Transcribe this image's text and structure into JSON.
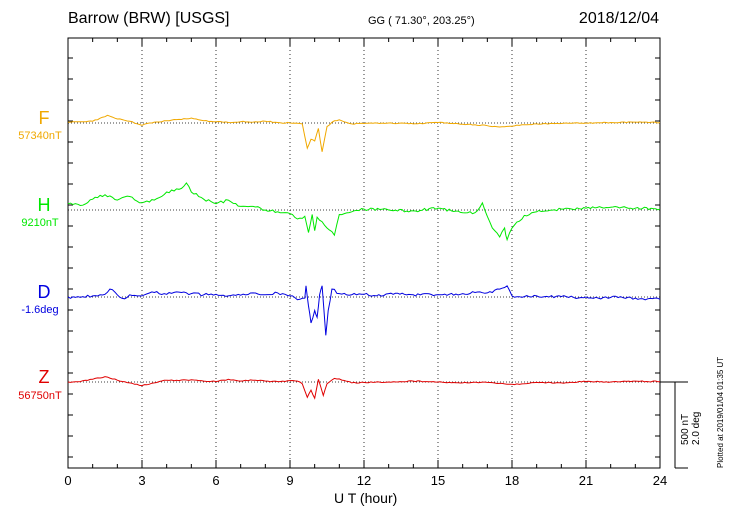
{
  "header": {
    "station": "Barrow (BRW)  [USGS]",
    "coordinates": "GG ( 71.30°, 203.25°)",
    "date": "2018/12/04"
  },
  "scale_bar": {
    "line1": "500 nT",
    "line2": "2.0 deg"
  },
  "plotted_note": "Plotted at 2019/01/04 01:35 UT",
  "colors": {
    "F": "#f0a800",
    "H": "#00e800",
    "D": "#0000e0",
    "Z": "#e00000"
  },
  "chart_data": {
    "type": "line",
    "title": "Barrow (BRW)  [USGS]",
    "xlabel": "U T (hour)",
    "ylabel": "",
    "xlim": [
      0,
      24
    ],
    "x_ticks": [
      "0",
      "3",
      "6",
      "9",
      "12",
      "15",
      "18",
      "21",
      "24"
    ],
    "grid": "vertical dotted at 3-hour intervals; dotted baseline per channel",
    "scale": {
      "nT_per_bar": 500,
      "deg_per_bar": 2.0
    },
    "series": [
      {
        "name": "F",
        "baseline_label": "57340nT",
        "unit": "nT",
        "x": [
          0,
          1,
          1.6,
          2,
          2.5,
          3,
          3.5,
          4,
          4.5,
          5,
          5.5,
          6,
          6.5,
          7,
          7.5,
          8,
          8.5,
          9,
          9.5,
          9.7,
          9.85,
          10,
          10.15,
          10.3,
          10.5,
          10.8,
          11,
          11.5,
          12,
          13,
          14,
          15,
          16,
          16.5,
          17,
          17.5,
          18,
          18.5,
          19,
          20,
          21,
          22,
          23,
          24
        ],
        "values": [
          10,
          20,
          85,
          45,
          20,
          -25,
          10,
          25,
          40,
          55,
          25,
          15,
          5,
          15,
          10,
          20,
          5,
          0,
          -10,
          -280,
          -180,
          -200,
          -60,
          -320,
          -40,
          25,
          35,
          -10,
          -5,
          0,
          -10,
          5,
          -15,
          -20,
          -30,
          -45,
          -35,
          -20,
          -10,
          -5,
          0,
          5,
          10,
          5
        ]
      },
      {
        "name": "H",
        "baseline_label": "9210nT",
        "unit": "nT",
        "x": [
          0,
          0.5,
          1,
          1.5,
          2,
          2.5,
          3,
          3.5,
          4,
          4.5,
          4.8,
          5,
          5.5,
          6,
          6.5,
          7,
          7.5,
          8,
          8.5,
          9,
          9.3,
          9.6,
          9.75,
          9.9,
          10,
          10.1,
          10.3,
          10.5,
          10.8,
          11,
          11.5,
          12,
          13,
          14,
          15,
          16,
          16.5,
          16.8,
          17,
          17.2,
          17.5,
          17.7,
          17.8,
          18,
          18.5,
          19,
          20,
          21,
          22,
          23,
          24
        ],
        "values": [
          70,
          50,
          120,
          170,
          110,
          150,
          80,
          110,
          200,
          230,
          300,
          200,
          120,
          70,
          110,
          40,
          40,
          0,
          -20,
          -40,
          -100,
          -70,
          -250,
          -50,
          -230,
          -80,
          -130,
          -200,
          -280,
          -50,
          -20,
          10,
          0,
          -10,
          20,
          -30,
          -30,
          80,
          -70,
          -200,
          -300,
          -200,
          -330,
          -200,
          -60,
          -20,
          10,
          20,
          30,
          20,
          10
        ]
      },
      {
        "name": "D",
        "baseline_label": "-1.6deg",
        "unit": "deg",
        "x": [
          0,
          0.5,
          1,
          1.5,
          1.7,
          2,
          2.3,
          2.5,
          3,
          3.5,
          4,
          4.5,
          5,
          5.5,
          6,
          6.5,
          7,
          7.5,
          8,
          8.5,
          9,
          9.3,
          9.6,
          9.65,
          9.75,
          9.85,
          10,
          10.1,
          10.2,
          10.3,
          10.45,
          10.55,
          10.7,
          11,
          11.5,
          12,
          12.5,
          13,
          14,
          15,
          16,
          16.5,
          17,
          17.5,
          17.8,
          18,
          18.5,
          19,
          19.5,
          20,
          20.5,
          21,
          21.5,
          22,
          22.5,
          23,
          23.5,
          24
        ],
        "values": [
          0,
          -0.02,
          0.05,
          0.12,
          0.35,
          0.1,
          -0.08,
          0.1,
          0.05,
          0.2,
          0.12,
          0.22,
          0.15,
          0.1,
          0.12,
          0.05,
          0.08,
          0.18,
          0.1,
          0.18,
          0.05,
          -0.12,
          -0.05,
          0.5,
          -0.4,
          -1.15,
          -0.6,
          -0.9,
          0.1,
          0.5,
          -1.7,
          -0.6,
          0.35,
          0.15,
          0.1,
          0.12,
          0.05,
          0.15,
          0.1,
          0.1,
          0.15,
          0.2,
          0.18,
          0.35,
          0.5,
          0.05,
          0.02,
          0.05,
          0,
          0.02,
          -0.02,
          0,
          -0.05,
          -0.02,
          -0.03,
          -0.05,
          -0.08,
          -0.1
        ]
      },
      {
        "name": "Z",
        "baseline_label": "56750nT",
        "unit": "nT",
        "x": [
          0,
          0.5,
          1,
          1.5,
          2,
          2.5,
          3,
          3.5,
          4,
          4.5,
          5,
          5.5,
          6,
          6.5,
          7,
          7.5,
          8,
          8.5,
          9,
          9.3,
          9.5,
          9.7,
          9.85,
          10,
          10.15,
          10.35,
          10.5,
          10.8,
          11,
          11.5,
          12,
          13,
          14,
          15,
          16,
          17,
          17.5,
          18,
          18.5,
          19,
          20,
          21,
          22,
          23,
          24
        ],
        "values": [
          0,
          5,
          30,
          60,
          20,
          -10,
          -40,
          -10,
          20,
          15,
          25,
          10,
          5,
          30,
          10,
          20,
          10,
          5,
          15,
          10,
          -20,
          -170,
          -90,
          -180,
          30,
          -150,
          -20,
          40,
          35,
          -10,
          -5,
          0,
          10,
          0,
          -10,
          -5,
          -15,
          -25,
          -20,
          -5,
          -10,
          5,
          0,
          10,
          5
        ]
      }
    ]
  }
}
